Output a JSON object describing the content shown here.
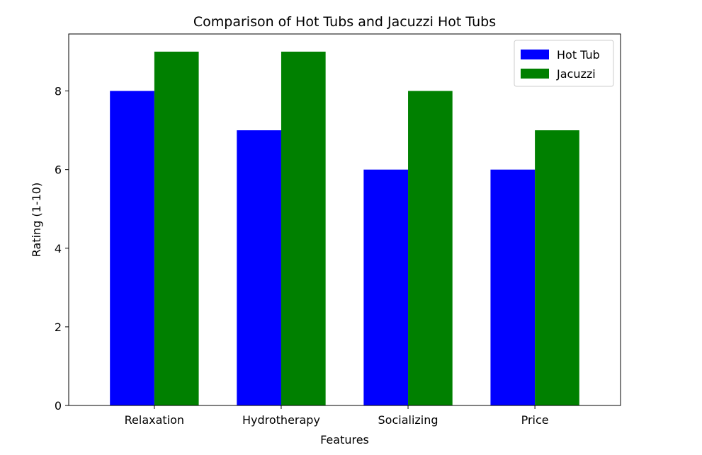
{
  "chart_data": {
    "type": "bar",
    "title": "Comparison of Hot Tubs and Jacuzzi Hot Tubs",
    "xlabel": "Features",
    "ylabel": "Rating (1-10)",
    "categories": [
      "Relaxation",
      "Hydrotherapy",
      "Socializing",
      "Price"
    ],
    "series": [
      {
        "name": "Hot Tub",
        "values": [
          8,
          7,
          6,
          6
        ],
        "color": "#0000ff"
      },
      {
        "name": "Jacuzzi",
        "values": [
          9,
          9,
          8,
          7
        ],
        "color": "#008000"
      }
    ],
    "ylim": [
      0,
      9.45
    ],
    "yticks": [
      0,
      2,
      4,
      6,
      8
    ],
    "grid": false,
    "legend_position": "top-right"
  }
}
